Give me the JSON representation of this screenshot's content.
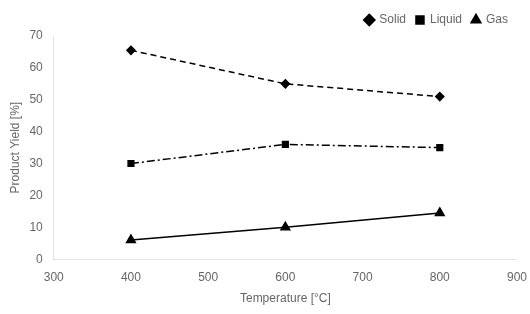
{
  "chart_data": {
    "type": "line",
    "xlabel": "Temperature [°C]",
    "ylabel": "Product Yield [%]",
    "x": [
      400,
      600,
      800
    ],
    "series": [
      {
        "name": "Solid",
        "color": "#000000",
        "values": [
          65.5,
          55.0,
          51.0
        ],
        "marker": "diamond",
        "line_style": "dashed"
      },
      {
        "name": "Liquid",
        "color": "#000000",
        "values": [
          30.0,
          36.0,
          35.0
        ],
        "marker": "square",
        "line_style": "dashdot"
      },
      {
        "name": "Gas",
        "color": "#000000",
        "values": [
          6.0,
          10.0,
          14.5
        ],
        "marker": "triangle",
        "line_style": "solid"
      }
    ],
    "xlim": [
      300,
      900
    ],
    "ylim": [
      0,
      70
    ],
    "xticks": [
      300,
      400,
      500,
      600,
      700,
      800,
      900
    ],
    "yticks": [
      0,
      10,
      20,
      30,
      40,
      50,
      60,
      70
    ],
    "grid": false,
    "legend": "upper right"
  }
}
